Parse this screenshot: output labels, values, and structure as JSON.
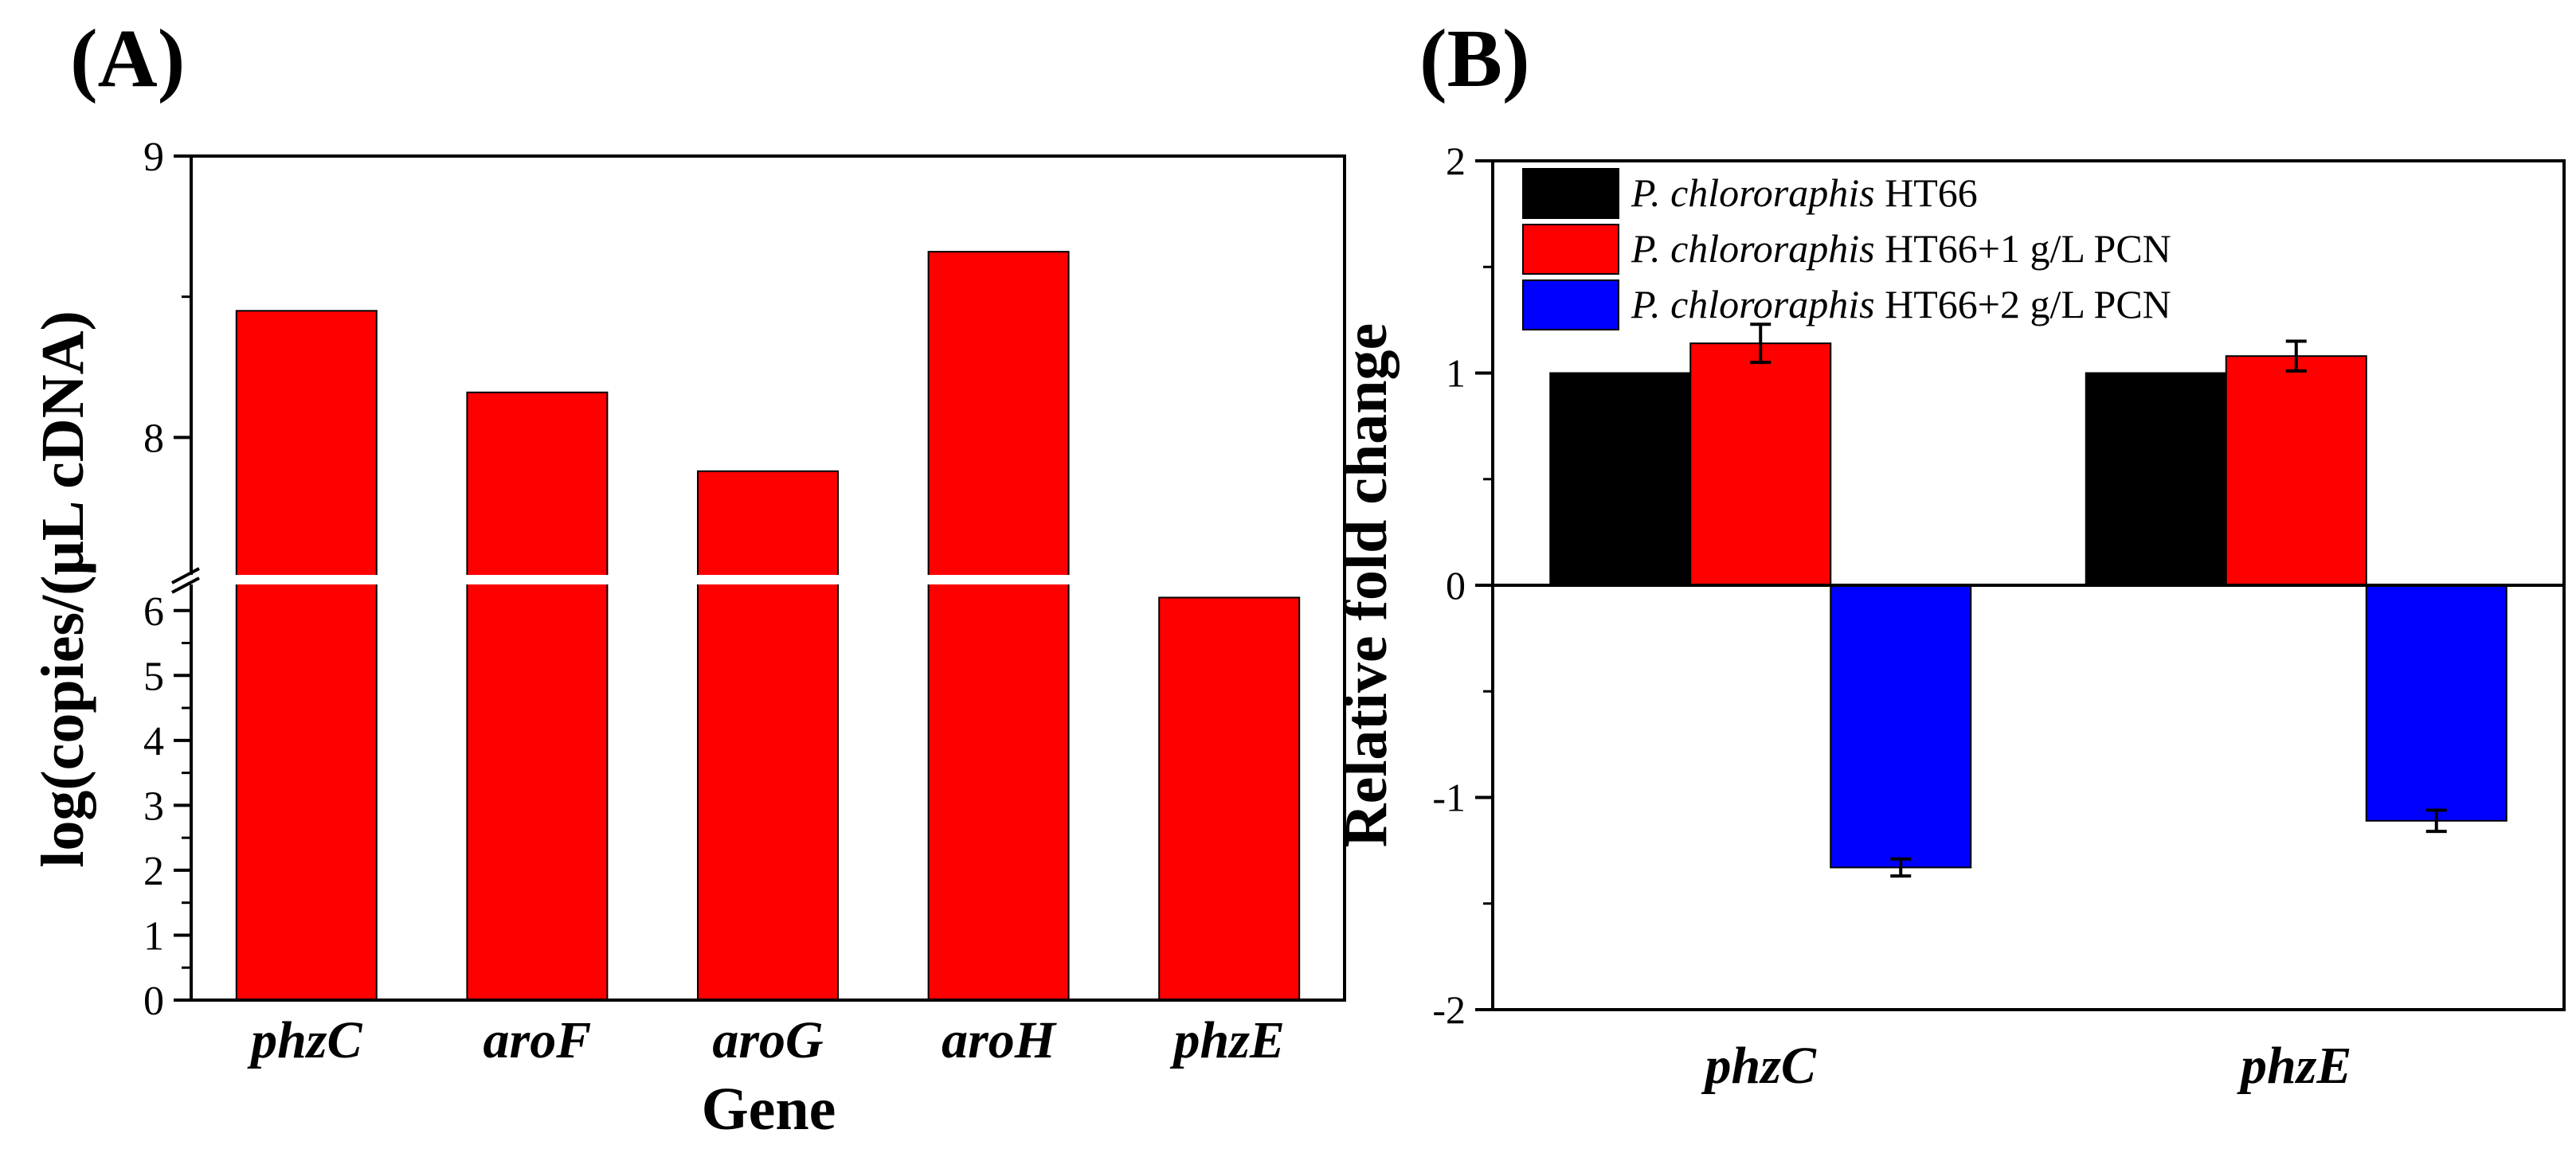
{
  "chart_data": [
    {
      "panel": "(A)",
      "type": "bar",
      "title": "",
      "xlabel": "Gene",
      "ylabel": "log(copies/(μL cDNA)",
      "categories": [
        "phzC",
        "aroF",
        "aroG",
        "aroH",
        "phzE"
      ],
      "values": [
        8.45,
        8.16,
        7.88,
        8.66,
        6.2
      ],
      "color": "#ff0000",
      "axis_break": true,
      "ylim_lower": [
        0,
        6.5
      ],
      "ylim_upper": [
        7.5,
        9
      ],
      "yticks_lower": [
        "0",
        "1",
        "2",
        "3",
        "4",
        "5",
        "6"
      ],
      "yticks_upper": [
        "8",
        "9"
      ],
      "grid": false
    },
    {
      "panel": "(B)",
      "type": "bar",
      "title": "",
      "xlabel": "",
      "ylabel": "Relative fold change",
      "categories": [
        "phzC",
        "phzE"
      ],
      "ylim": [
        -2,
        2
      ],
      "yticks": [
        "-2",
        "-1",
        "0",
        "1",
        "2"
      ],
      "legend_position": "top-left",
      "grid": false,
      "series": [
        {
          "name": "P. chlororaphis HT66",
          "italic": "P. chlororaphis",
          "suffix": " HT66",
          "color": "#000000",
          "values": [
            1.0,
            1.0
          ],
          "errors": [
            0,
            0
          ]
        },
        {
          "name": "P. chlororaphis HT66+1 g/L PCN",
          "italic": "P. chlororaphis",
          "suffix": " HT66+1 g/L PCN",
          "color": "#ff0000",
          "values": [
            1.14,
            1.08
          ],
          "errors": [
            0.09,
            0.07
          ]
        },
        {
          "name": "P. chlororaphis HT66+2 g/L PCN",
          "italic": "P. chlororaphis",
          "suffix": " HT66+2 g/L PCN",
          "color": "#0000ff",
          "values": [
            -1.33,
            -1.11
          ],
          "errors": [
            0.04,
            0.05
          ]
        }
      ]
    }
  ]
}
